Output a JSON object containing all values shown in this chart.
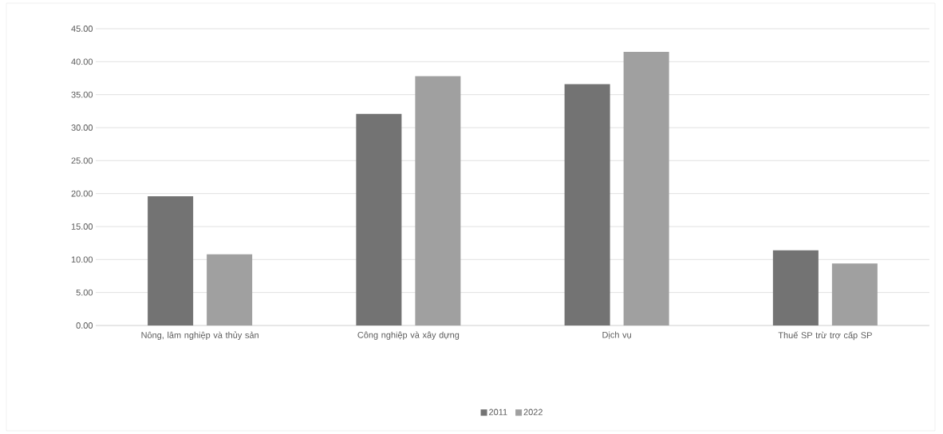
{
  "chart_data": {
    "type": "bar",
    "categories": [
      "Nông, lâm nghiệp và thủy sản",
      "Công nghiệp và xây dựng",
      "Dịch vụ",
      "Thuế SP trừ trợ cấp SP"
    ],
    "series": [
      {
        "name": "2011",
        "color": "#737373",
        "values": [
          19.6,
          32.1,
          36.6,
          11.4
        ]
      },
      {
        "name": "2022",
        "color": "#a0a0a0",
        "values": [
          10.8,
          37.8,
          41.5,
          9.4
        ]
      }
    ],
    "ylim": [
      0,
      45
    ],
    "yticks": [
      {
        "value": 0,
        "label": "0.00"
      },
      {
        "value": 5,
        "label": "5.00"
      },
      {
        "value": 10,
        "label": "10.00"
      },
      {
        "value": 15,
        "label": "15.00"
      },
      {
        "value": 20,
        "label": "20.00"
      },
      {
        "value": 25,
        "label": "25.00"
      },
      {
        "value": 30,
        "label": "30.00"
      },
      {
        "value": 35,
        "label": "35.00"
      },
      {
        "value": 40,
        "label": "40.00"
      },
      {
        "value": 45,
        "label": "45.00"
      }
    ],
    "grid": "y",
    "legend": "bottom"
  }
}
